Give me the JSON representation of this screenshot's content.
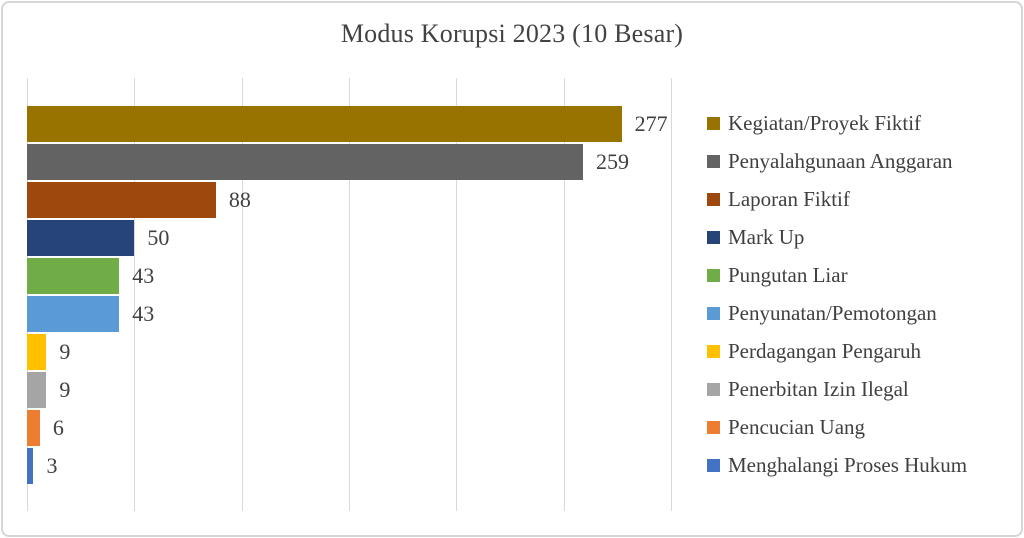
{
  "chart": {
    "title": "Modus Korupsi 2023 (10 Besar)"
  },
  "chart_data": {
    "type": "bar",
    "orientation": "horizontal",
    "title": "Modus Korupsi 2023 (10 Besar)",
    "categories": [
      "Kegiatan/Proyek Fiktif",
      "Penyalahgunaan Anggaran",
      "Laporan Fiktif",
      "Mark Up",
      "Pungutan Liar",
      "Penyunatan/Pemotongan",
      "Perdagangan Pengaruh",
      "Penerbitan Izin Ilegal",
      "Pencucian Uang",
      "Menghalangi Proses Hukum"
    ],
    "values": [
      277,
      259,
      88,
      50,
      43,
      43,
      9,
      9,
      6,
      3
    ],
    "colors": [
      "#997300",
      "#636363",
      "#9E480E",
      "#264478",
      "#70AD47",
      "#5B9BD5",
      "#FFC000",
      "#A5A5A5",
      "#ED7D31",
      "#4472C4"
    ],
    "data_labels": [
      277,
      259,
      88,
      50,
      43,
      43,
      9,
      9,
      6,
      3
    ],
    "xlim": [
      0,
      300
    ],
    "gridline_interval": 50,
    "grid": true,
    "legend_position": "right",
    "xlabel": "",
    "ylabel": ""
  },
  "style": {
    "gridline_color": "#d9d9d9",
    "text_color": "#404040",
    "title_color": "#424242",
    "frame_border_color": "#d6d6d6",
    "background": "#ffffff"
  }
}
